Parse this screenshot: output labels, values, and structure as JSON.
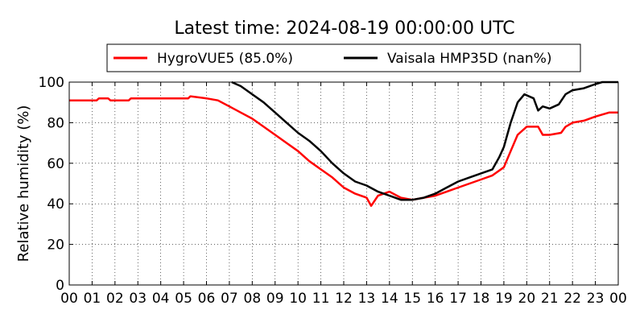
{
  "chart_data": {
    "type": "line",
    "title": "Latest time: 2024-08-19 00:00:00 UTC",
    "xlabel": "",
    "ylabel": "Relative humidity (%)",
    "xlim": [
      0,
      24
    ],
    "ylim": [
      0,
      100
    ],
    "x_ticks": [
      "00",
      "01",
      "02",
      "03",
      "04",
      "05",
      "06",
      "07",
      "08",
      "09",
      "10",
      "11",
      "12",
      "13",
      "14",
      "15",
      "16",
      "17",
      "18",
      "19",
      "20",
      "21",
      "22",
      "23",
      "00"
    ],
    "y_ticks": [
      0,
      20,
      40,
      60,
      80,
      100
    ],
    "grid": true,
    "legend_position": "top",
    "series": [
      {
        "name": "HygroVUE5 (85.0%)",
        "color": "#ff0000",
        "x": [
          0,
          1.2,
          1.3,
          1.7,
          1.8,
          2.6,
          2.7,
          5.2,
          5.3,
          6.0,
          6.5,
          7.0,
          7.5,
          8.0,
          8.5,
          9.0,
          9.5,
          10.0,
          10.5,
          11.0,
          11.5,
          12.0,
          12.5,
          13.0,
          13.2,
          13.5,
          14.0,
          14.5,
          15.0,
          15.5,
          16.0,
          16.5,
          17.0,
          17.5,
          18.0,
          18.5,
          19.0,
          19.3,
          19.6,
          20.0,
          20.5,
          20.7,
          21.0,
          21.5,
          21.7,
          22.0,
          22.5,
          23.0,
          23.3,
          23.6,
          24.0
        ],
        "y": [
          91,
          91,
          92,
          92,
          91,
          91,
          92,
          92,
          93,
          92,
          91,
          88,
          85,
          82,
          78,
          74,
          70,
          66,
          61,
          57,
          53,
          48,
          45,
          43,
          39,
          44,
          46,
          43,
          42,
          43,
          44,
          46,
          48,
          50,
          52,
          54,
          58,
          66,
          74,
          78,
          78,
          74,
          74,
          75,
          78,
          80,
          81,
          83,
          84,
          85,
          85
        ]
      },
      {
        "name": "Vaisala HMP35D (nan%)",
        "color": "#000000",
        "x": [
          7.1,
          7.5,
          8.0,
          8.5,
          9.0,
          9.5,
          10.0,
          10.5,
          11.0,
          11.5,
          12.0,
          12.5,
          13.0,
          13.5,
          14.0,
          14.5,
          15.0,
          15.5,
          16.0,
          16.5,
          17.0,
          17.5,
          18.0,
          18.5,
          18.8,
          19.0,
          19.3,
          19.6,
          19.9,
          20.3,
          20.5,
          20.7,
          21.0,
          21.4,
          21.7,
          22.0,
          22.5,
          23.0,
          23.3,
          24.0
        ],
        "y": [
          100,
          98,
          94,
          90,
          85,
          80,
          75,
          71,
          66,
          60,
          55,
          51,
          49,
          46,
          44,
          42,
          42,
          43,
          45,
          48,
          51,
          53,
          55,
          57,
          63,
          68,
          80,
          90,
          94,
          92,
          86,
          88,
          87,
          89,
          94,
          96,
          97,
          99,
          100,
          100
        ]
      }
    ]
  }
}
